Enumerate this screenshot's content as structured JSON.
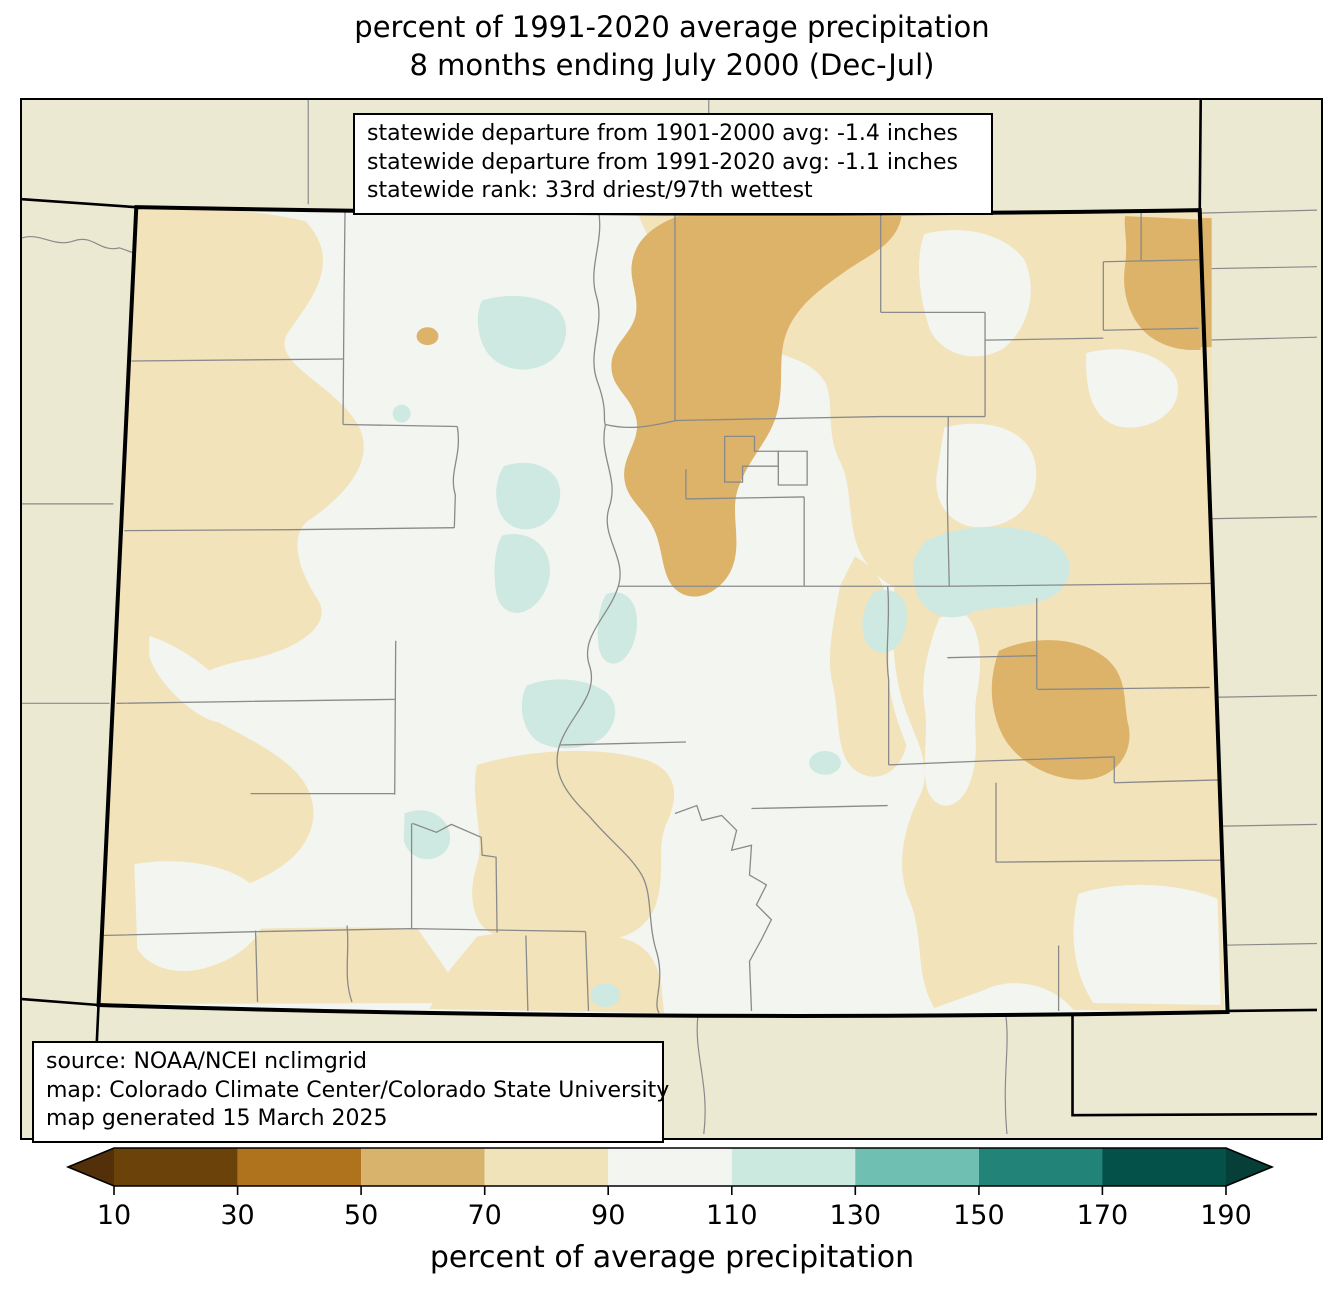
{
  "title": {
    "line1": "percent of 1991-2020 average precipitation",
    "line2": "8 months ending July 2000 (Dec-Jul)"
  },
  "stats_box": {
    "line1": "statewide departure from 1901-2000 avg: -1.4 inches",
    "line2": "statewide departure from 1991-2020 avg: -1.1 inches",
    "line3": "statewide rank: 33rd driest/97th wettest"
  },
  "source_box": {
    "line1": "source: NOAA/NCEI nclimgrid",
    "line2": "map: Colorado Climate Center/Colorado State University",
    "line3": "map generated 15 March 2025"
  },
  "colorbar": {
    "axis_label": "percent of average precipitation",
    "ticks": [
      "10",
      "30",
      "50",
      "70",
      "90",
      "110",
      "130",
      "150",
      "170",
      "190"
    ],
    "segment_colors": [
      "#6B4209",
      "#B0731D",
      "#D7B36B",
      "#F0E3B9",
      "#F3F5F1",
      "#CBE9DF",
      "#6FBFB2",
      "#228379",
      "#04514A"
    ],
    "under_color": "#53300A",
    "over_color": "#063F38"
  },
  "map": {
    "colors": {
      "outside": "#ECE9D3",
      "base": "#F3F5F1",
      "tan": "#F2E3BA",
      "dark_tan": "#DDB269",
      "mint": "#CEE9E1",
      "county": "#8A8A8A",
      "border": "#000000"
    }
  }
}
